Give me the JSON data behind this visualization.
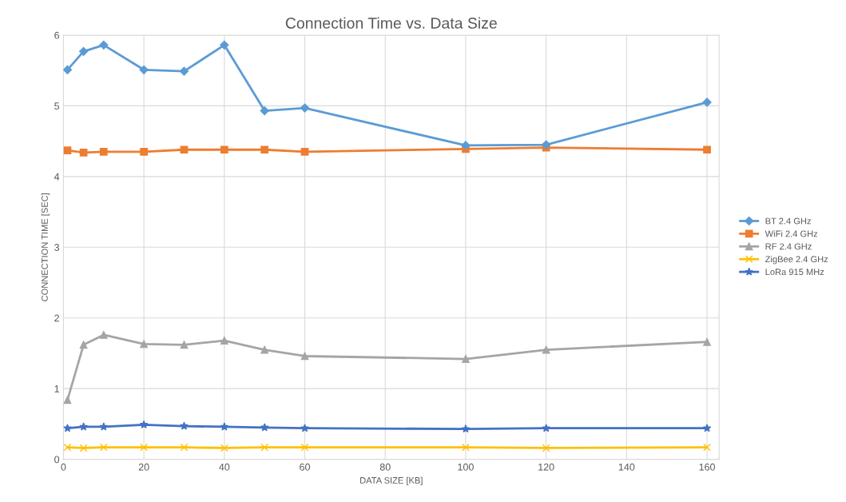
{
  "chart_data": {
    "type": "line",
    "title": "Connection Time vs. Data Size",
    "xlabel": "DATA SIZE [KB]",
    "ylabel": "CONNECTION TIME [SEC]",
    "x": [
      1,
      5,
      10,
      20,
      30,
      40,
      50,
      60,
      100,
      120,
      160
    ],
    "series": [
      {
        "name": "BT 2.4 GHz",
        "color": "#5b9bd5",
        "marker": "diamond",
        "values": [
          5.51,
          5.77,
          5.86,
          5.51,
          5.49,
          5.86,
          4.93,
          4.97,
          4.44,
          4.45,
          5.05
        ]
      },
      {
        "name": "WiFi 2.4 GHz",
        "color": "#ed7d31",
        "marker": "square",
        "values": [
          4.37,
          4.34,
          4.35,
          4.35,
          4.38,
          4.38,
          4.38,
          4.35,
          4.39,
          4.41,
          4.38
        ]
      },
      {
        "name": "RF 2.4 GHz",
        "color": "#a5a5a5",
        "marker": "triangle",
        "values": [
          0.84,
          1.62,
          1.76,
          1.63,
          1.62,
          1.68,
          1.55,
          1.46,
          1.42,
          1.55,
          1.66
        ]
      },
      {
        "name": "ZigBee 2.4 GHz",
        "color": "#ffc000",
        "marker": "cross",
        "values": [
          0.17,
          0.16,
          0.17,
          0.17,
          0.17,
          0.16,
          0.17,
          0.17,
          0.17,
          0.16,
          0.17
        ]
      },
      {
        "name": "LoRa 915 MHz",
        "color": "#4472c4",
        "marker": "star",
        "values": [
          0.44,
          0.46,
          0.46,
          0.49,
          0.47,
          0.46,
          0.45,
          0.44,
          0.43,
          0.44,
          0.44
        ]
      }
    ],
    "xlim": [
      0,
      163
    ],
    "xticks": [
      0,
      20,
      40,
      60,
      80,
      100,
      120,
      140,
      160
    ],
    "ylim": [
      0,
      6
    ],
    "yticks": [
      0,
      1,
      2,
      3,
      4,
      5,
      6
    ],
    "grid": true,
    "legend": "right",
    "line_style": "solid"
  }
}
